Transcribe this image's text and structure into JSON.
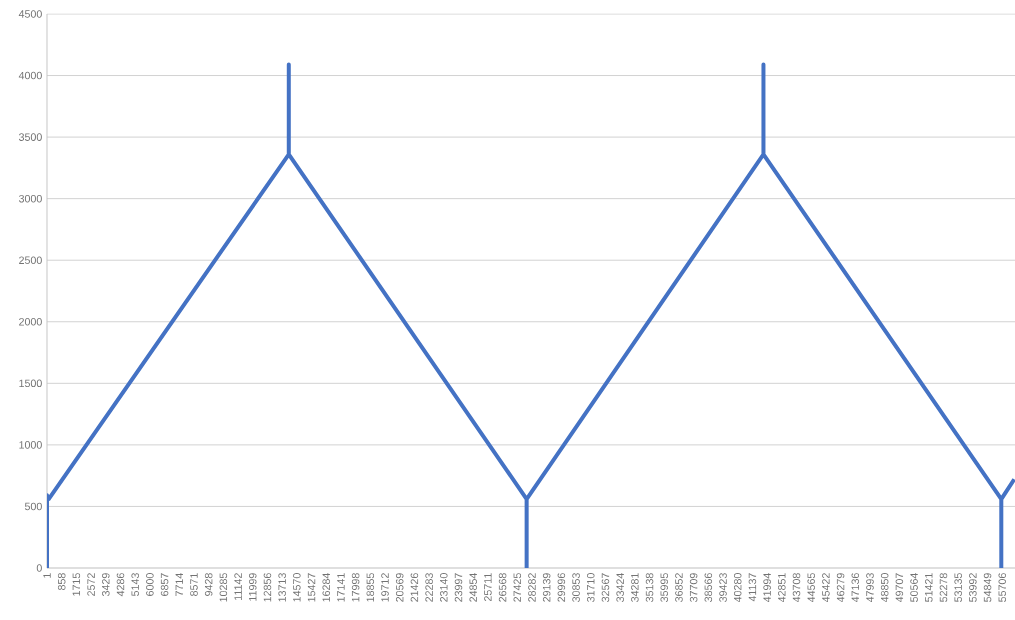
{
  "chart_data": {
    "type": "line",
    "color": "#4472c4",
    "line_style": "solid",
    "x": [
      1,
      2,
      100,
      14100,
      14101,
      14102,
      27970,
      27971,
      27972,
      41780,
      41781,
      41782,
      55650,
      55651,
      55652,
      56405
    ],
    "values": [
      0,
      590,
      560,
      3360,
      4090,
      3360,
      560,
      0,
      560,
      3360,
      4090,
      3360,
      560,
      0,
      560,
      720
    ],
    "xlim": [
      1,
      56450
    ],
    "xticks": [
      1,
      858,
      1715,
      2572,
      3429,
      4286,
      5143,
      6000,
      6857,
      7714,
      8571,
      9428,
      10285,
      11142,
      11999,
      12856,
      13713,
      14570,
      15427,
      16284,
      17141,
      17998,
      18855,
      19712,
      20569,
      21426,
      22283,
      23140,
      23997,
      24854,
      25711,
      26568,
      27425,
      28282,
      29139,
      29996,
      30853,
      31710,
      32567,
      33424,
      34281,
      35138,
      35995,
      36852,
      37709,
      38566,
      39423,
      40280,
      41137,
      41994,
      42851,
      43708,
      44565,
      45422,
      46279,
      47136,
      47993,
      48850,
      49707,
      50564,
      51421,
      52278,
      53135,
      53992,
      54849,
      55706
    ],
    "ylim": [
      0,
      4500
    ],
    "yticks": [
      0,
      500,
      1000,
      1500,
      2000,
      2500,
      3000,
      3500,
      4000,
      4500
    ],
    "grid": "y"
  }
}
